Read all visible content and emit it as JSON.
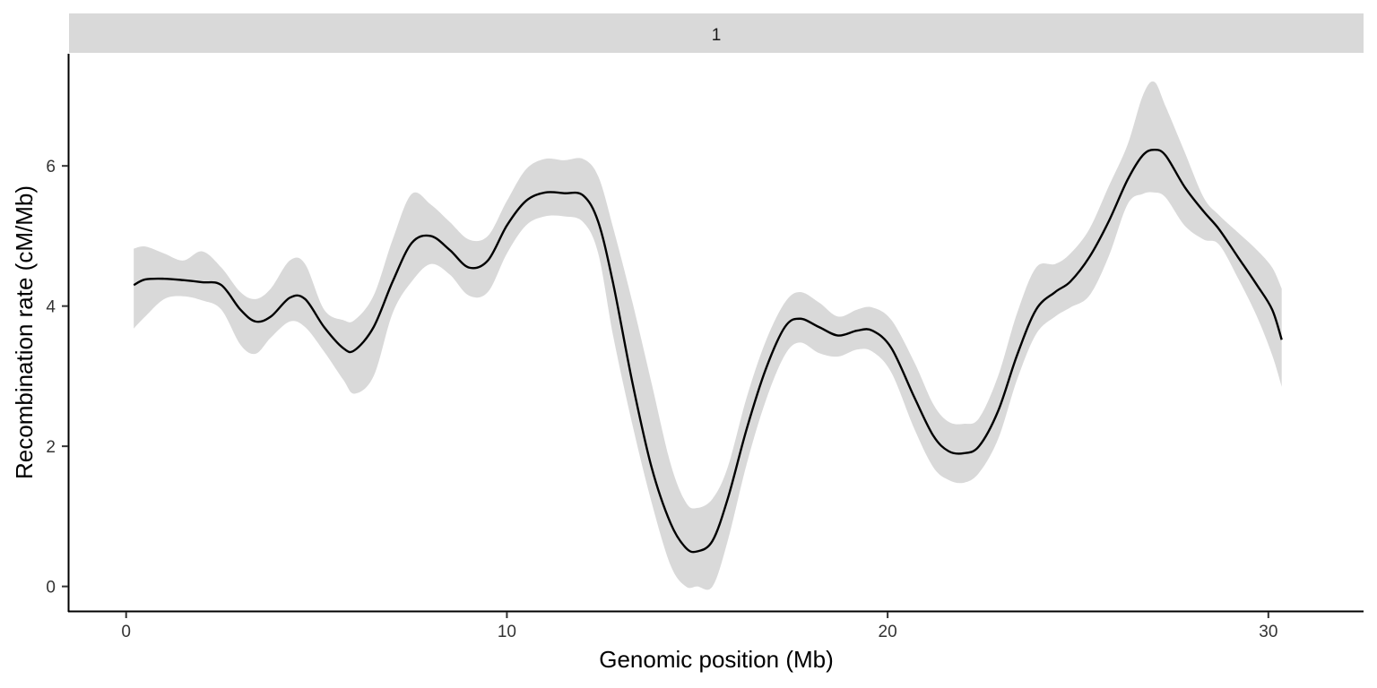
{
  "chart_data": {
    "type": "line",
    "facet_label": "1",
    "xlabel": "Genomic position (Mb)",
    "ylabel": "Recombination rate (cM/Mb)",
    "xlim": [
      -1.5,
      32.5
    ],
    "ylim": [
      -0.35,
      7.6
    ],
    "x_ticks": [
      0,
      10,
      20,
      30
    ],
    "y_ticks": [
      0,
      2,
      4,
      6
    ],
    "grid": false,
    "colors": {
      "line": "#000000",
      "ribbon": "#d9d9d9",
      "strip": "#d9d9d9",
      "axis": "#000000"
    },
    "series": [
      {
        "type": "smooth_line",
        "points": [
          [
            0.2,
            4.3
          ],
          [
            0.5,
            4.38
          ],
          [
            1.0,
            4.39
          ],
          [
            1.5,
            4.37
          ],
          [
            2.0,
            4.34
          ],
          [
            2.5,
            4.3
          ],
          [
            3.0,
            3.95
          ],
          [
            3.4,
            3.78
          ],
          [
            3.8,
            3.85
          ],
          [
            4.3,
            4.12
          ],
          [
            4.7,
            4.1
          ],
          [
            5.2,
            3.7
          ],
          [
            5.7,
            3.4
          ],
          [
            6.0,
            3.37
          ],
          [
            6.5,
            3.7
          ],
          [
            7.0,
            4.35
          ],
          [
            7.5,
            4.9
          ],
          [
            8.0,
            5.0
          ],
          [
            8.5,
            4.8
          ],
          [
            9.0,
            4.55
          ],
          [
            9.5,
            4.65
          ],
          [
            10.0,
            5.15
          ],
          [
            10.5,
            5.5
          ],
          [
            11.0,
            5.62
          ],
          [
            11.5,
            5.61
          ],
          [
            12.0,
            5.58
          ],
          [
            12.4,
            5.2
          ],
          [
            12.8,
            4.3
          ],
          [
            13.3,
            2.9
          ],
          [
            13.8,
            1.7
          ],
          [
            14.3,
            0.9
          ],
          [
            14.7,
            0.55
          ],
          [
            15.0,
            0.5
          ],
          [
            15.4,
            0.65
          ],
          [
            15.8,
            1.25
          ],
          [
            16.3,
            2.25
          ],
          [
            16.8,
            3.1
          ],
          [
            17.3,
            3.7
          ],
          [
            17.7,
            3.82
          ],
          [
            18.2,
            3.7
          ],
          [
            18.7,
            3.58
          ],
          [
            19.2,
            3.65
          ],
          [
            19.6,
            3.65
          ],
          [
            20.1,
            3.4
          ],
          [
            20.7,
            2.7
          ],
          [
            21.2,
            2.15
          ],
          [
            21.6,
            1.93
          ],
          [
            22.0,
            1.9
          ],
          [
            22.4,
            2.0
          ],
          [
            22.9,
            2.5
          ],
          [
            23.4,
            3.3
          ],
          [
            23.9,
            3.95
          ],
          [
            24.4,
            4.2
          ],
          [
            24.8,
            4.35
          ],
          [
            25.3,
            4.7
          ],
          [
            25.8,
            5.2
          ],
          [
            26.3,
            5.8
          ],
          [
            26.7,
            6.15
          ],
          [
            27.0,
            6.23
          ],
          [
            27.3,
            6.15
          ],
          [
            27.8,
            5.7
          ],
          [
            28.3,
            5.35
          ],
          [
            28.7,
            5.1
          ],
          [
            29.2,
            4.7
          ],
          [
            29.7,
            4.3
          ],
          [
            30.1,
            3.95
          ],
          [
            30.35,
            3.52
          ]
        ]
      },
      {
        "type": "confidence_ribbon",
        "upper": [
          [
            0.2,
            4.82
          ],
          [
            0.5,
            4.85
          ],
          [
            1.0,
            4.75
          ],
          [
            1.5,
            4.65
          ],
          [
            2.0,
            4.78
          ],
          [
            2.5,
            4.55
          ],
          [
            3.0,
            4.2
          ],
          [
            3.4,
            4.1
          ],
          [
            3.8,
            4.25
          ],
          [
            4.3,
            4.65
          ],
          [
            4.7,
            4.6
          ],
          [
            5.2,
            3.95
          ],
          [
            5.7,
            3.8
          ],
          [
            6.0,
            3.8
          ],
          [
            6.5,
            4.15
          ],
          [
            7.0,
            4.95
          ],
          [
            7.5,
            5.6
          ],
          [
            8.0,
            5.45
          ],
          [
            8.5,
            5.2
          ],
          [
            9.0,
            4.95
          ],
          [
            9.5,
            5.0
          ],
          [
            10.0,
            5.5
          ],
          [
            10.5,
            5.95
          ],
          [
            11.0,
            6.1
          ],
          [
            11.5,
            6.08
          ],
          [
            12.0,
            6.1
          ],
          [
            12.4,
            5.85
          ],
          [
            12.8,
            5.1
          ],
          [
            13.3,
            4.05
          ],
          [
            13.8,
            2.9
          ],
          [
            14.3,
            1.75
          ],
          [
            14.7,
            1.2
          ],
          [
            15.0,
            1.12
          ],
          [
            15.4,
            1.25
          ],
          [
            15.8,
            1.7
          ],
          [
            16.3,
            2.7
          ],
          [
            16.8,
            3.5
          ],
          [
            17.3,
            4.05
          ],
          [
            17.7,
            4.2
          ],
          [
            18.2,
            4.05
          ],
          [
            18.7,
            3.85
          ],
          [
            19.2,
            3.95
          ],
          [
            19.6,
            3.98
          ],
          [
            20.1,
            3.8
          ],
          [
            20.7,
            3.2
          ],
          [
            21.2,
            2.6
          ],
          [
            21.6,
            2.35
          ],
          [
            22.0,
            2.32
          ],
          [
            22.4,
            2.4
          ],
          [
            22.9,
            3.0
          ],
          [
            23.4,
            3.9
          ],
          [
            23.9,
            4.55
          ],
          [
            24.4,
            4.6
          ],
          [
            24.8,
            4.75
          ],
          [
            25.3,
            5.1
          ],
          [
            25.8,
            5.7
          ],
          [
            26.3,
            6.3
          ],
          [
            26.7,
            7.0
          ],
          [
            27.0,
            7.2
          ],
          [
            27.3,
            6.85
          ],
          [
            27.8,
            6.2
          ],
          [
            28.3,
            5.55
          ],
          [
            28.7,
            5.3
          ],
          [
            29.2,
            5.05
          ],
          [
            29.7,
            4.8
          ],
          [
            30.1,
            4.55
          ],
          [
            30.35,
            4.25
          ]
        ],
        "lower": [
          [
            0.2,
            3.68
          ],
          [
            0.5,
            3.85
          ],
          [
            1.0,
            4.1
          ],
          [
            1.5,
            4.14
          ],
          [
            2.0,
            4.08
          ],
          [
            2.5,
            3.95
          ],
          [
            3.0,
            3.45
          ],
          [
            3.4,
            3.32
          ],
          [
            3.8,
            3.55
          ],
          [
            4.3,
            3.78
          ],
          [
            4.7,
            3.7
          ],
          [
            5.2,
            3.35
          ],
          [
            5.7,
            2.95
          ],
          [
            6.0,
            2.75
          ],
          [
            6.5,
            3.0
          ],
          [
            7.0,
            3.9
          ],
          [
            7.5,
            4.35
          ],
          [
            8.0,
            4.6
          ],
          [
            8.5,
            4.45
          ],
          [
            9.0,
            4.15
          ],
          [
            9.5,
            4.2
          ],
          [
            10.0,
            4.75
          ],
          [
            10.5,
            5.15
          ],
          [
            11.0,
            5.28
          ],
          [
            11.5,
            5.28
          ],
          [
            12.0,
            5.2
          ],
          [
            12.4,
            4.75
          ],
          [
            12.8,
            3.55
          ],
          [
            13.3,
            2.3
          ],
          [
            13.8,
            1.2
          ],
          [
            14.3,
            0.3
          ],
          [
            14.7,
            0.0
          ],
          [
            15.0,
            0.0
          ],
          [
            15.4,
            0.0
          ],
          [
            15.8,
            0.65
          ],
          [
            16.3,
            1.75
          ],
          [
            16.8,
            2.65
          ],
          [
            17.3,
            3.3
          ],
          [
            17.7,
            3.48
          ],
          [
            18.2,
            3.33
          ],
          [
            18.7,
            3.28
          ],
          [
            19.2,
            3.38
          ],
          [
            19.6,
            3.35
          ],
          [
            20.1,
            3.05
          ],
          [
            20.7,
            2.25
          ],
          [
            21.2,
            1.7
          ],
          [
            21.6,
            1.52
          ],
          [
            22.0,
            1.48
          ],
          [
            22.4,
            1.62
          ],
          [
            22.9,
            2.1
          ],
          [
            23.4,
            2.95
          ],
          [
            23.9,
            3.6
          ],
          [
            24.4,
            3.85
          ],
          [
            24.8,
            3.98
          ],
          [
            25.3,
            4.15
          ],
          [
            25.8,
            4.7
          ],
          [
            26.3,
            5.45
          ],
          [
            26.7,
            5.6
          ],
          [
            27.0,
            5.62
          ],
          [
            27.3,
            5.55
          ],
          [
            27.8,
            5.15
          ],
          [
            28.3,
            4.95
          ],
          [
            28.7,
            4.88
          ],
          [
            29.2,
            4.4
          ],
          [
            29.7,
            3.85
          ],
          [
            30.1,
            3.3
          ],
          [
            30.35,
            2.85
          ]
        ]
      }
    ]
  }
}
